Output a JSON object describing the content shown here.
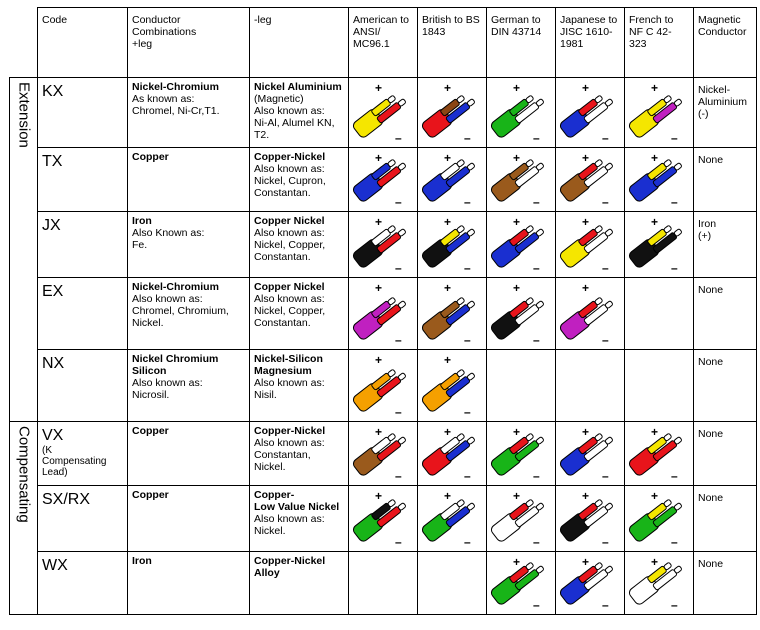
{
  "sign_plus": "+",
  "sign_minus": "–",
  "header": [
    "Code",
    "Conductor\nCombinations\n+leg",
    "-leg",
    "American to\nANSI/\nMC96.1",
    "British to BS\n1843",
    "German to\nDIN 43714",
    "Japanese to\nJISC 1610-\n1981",
    "French to\nNF C 42-\n323",
    "Magnetic\nConductor"
  ],
  "groups": [
    {
      "label": "Extension",
      "rows": [
        {
          "code": "KX",
          "plus": {
            "name": "Nickel-Chromium",
            "note": "As known as:\nChromel, Ni-Cr,T1."
          },
          "minus": {
            "name": "Nickel Aluminium",
            "note": "(Magnetic)\nAlso known as:\nNi-Al, Alumel KN,\nT2."
          },
          "cables": [
            [
              "#f5e600",
              "#f5e600",
              "#e8141b"
            ],
            [
              "#e8141b",
              "#8b4513",
              "#1a2fd0"
            ],
            [
              "#18b418",
              "#18b418",
              "#ffffff"
            ],
            [
              "#1a2fd0",
              "#e8141b",
              "#ffffff"
            ],
            [
              "#f5e600",
              "#f5e600",
              "#c020c0"
            ]
          ],
          "magnetic": "Nickel-\nAluminium\n(-)"
        },
        {
          "code": "TX",
          "plus": {
            "name": "Copper"
          },
          "minus": {
            "name": "Copper-Nickel",
            "note": "Also known as:\nNickel, Cupron,\nConstantan."
          },
          "cables": [
            [
              "#1a2fd0",
              "#1a2fd0",
              "#e8141b"
            ],
            [
              "#1a2fd0",
              "#ffffff",
              "#1a2fd0"
            ],
            [
              "#9a5a1c",
              "#9a5a1c",
              "#ffffff"
            ],
            [
              "#9a5a1c",
              "#e8141b",
              "#ffffff"
            ],
            [
              "#1a2fd0",
              "#f5e600",
              "#1a2fd0"
            ]
          ],
          "magnetic": "None"
        },
        {
          "code": "JX",
          "plus": {
            "name": "Iron",
            "note": "Also Known as:\nFe."
          },
          "minus": {
            "name": "Copper Nickel",
            "note": "Also known as:\nNickel, Copper,\nConstantan."
          },
          "cables": [
            [
              "#111111",
              "#ffffff",
              "#e8141b"
            ],
            [
              "#111111",
              "#f5e600",
              "#1a2fd0"
            ],
            [
              "#1a2fd0",
              "#e8141b",
              "#1a2fd0"
            ],
            [
              "#f5e600",
              "#e8141b",
              "#ffffff"
            ],
            [
              "#111111",
              "#f5e600",
              "#111111"
            ]
          ],
          "magnetic": "Iron\n(+)"
        },
        {
          "code": "EX",
          "plus": {
            "name": "Nickel-Chromium",
            "note": "Also known as:\nChromel, Chromium,\nNickel."
          },
          "minus": {
            "name": "Copper Nickel",
            "note": "Also known as:\nNickel, Copper,\nConstantan."
          },
          "cables": [
            [
              "#c020c0",
              "#c020c0",
              "#e8141b"
            ],
            [
              "#9a5a1c",
              "#9a5a1c",
              "#1a2fd0"
            ],
            [
              "#111111",
              "#e8141b",
              "#ffffff"
            ],
            [
              "#c020c0",
              "#e8141b",
              "#ffffff"
            ],
            null
          ],
          "magnetic": "None"
        },
        {
          "code": "NX",
          "plus": {
            "name": "Nickel Chromium\nSilicon",
            "note": "Also known as:\nNicrosil."
          },
          "minus": {
            "name": "Nickel-Silicon\nMagnesium",
            "note": "Also known as:\nNisil."
          },
          "cables": [
            [
              "#f5a000",
              "#f5a000",
              "#e8141b"
            ],
            [
              "#f5a000",
              "#f5a000",
              "#1a2fd0"
            ],
            null,
            null,
            null
          ],
          "magnetic": "None"
        }
      ]
    },
    {
      "label": "Compensating",
      "rows": [
        {
          "code": "VX",
          "code_note": "(K\nCompensating\nLead)",
          "plus": {
            "name": "Copper"
          },
          "minus": {
            "name": "Copper-Nickel",
            "note": "Also known as:\nConstantan,\nNickel."
          },
          "cables": [
            [
              "#9a5a1c",
              "#ffffff",
              "#e8141b"
            ],
            [
              "#e8141b",
              "#ffffff",
              "#1a2fd0"
            ],
            [
              "#18b418",
              "#e8141b",
              "#18b418"
            ],
            [
              "#1a2fd0",
              "#e8141b",
              "#ffffff"
            ],
            [
              "#e8141b",
              "#f5e600",
              "#e8141b"
            ]
          ],
          "magnetic": "None"
        },
        {
          "code": "SX/RX",
          "plus": {
            "name": "Copper"
          },
          "minus": {
            "name": "Copper-\nLow Value Nickel",
            "note": "Also known as:\nNickel."
          },
          "cables": [
            [
              "#18b418",
              "#111111",
              "#e8141b"
            ],
            [
              "#18b418",
              "#ffffff",
              "#1a2fd0"
            ],
            [
              "#ffffff",
              "#e8141b",
              "#ffffff"
            ],
            [
              "#111111",
              "#e8141b",
              "#ffffff"
            ],
            [
              "#18b418",
              "#f5e600",
              "#18b418"
            ]
          ],
          "magnetic": "None"
        },
        {
          "code": "WX",
          "plus": {
            "name": "Iron"
          },
          "minus": {
            "name": "Copper-Nickel\nAlloy"
          },
          "cables": [
            null,
            null,
            [
              "#18b418",
              "#e8141b",
              "#18b418"
            ],
            [
              "#1a2fd0",
              "#e8141b",
              "#ffffff"
            ],
            [
              "#ffffff",
              "#f5e600",
              "#ffffff"
            ]
          ],
          "magnetic": "None"
        }
      ]
    }
  ]
}
